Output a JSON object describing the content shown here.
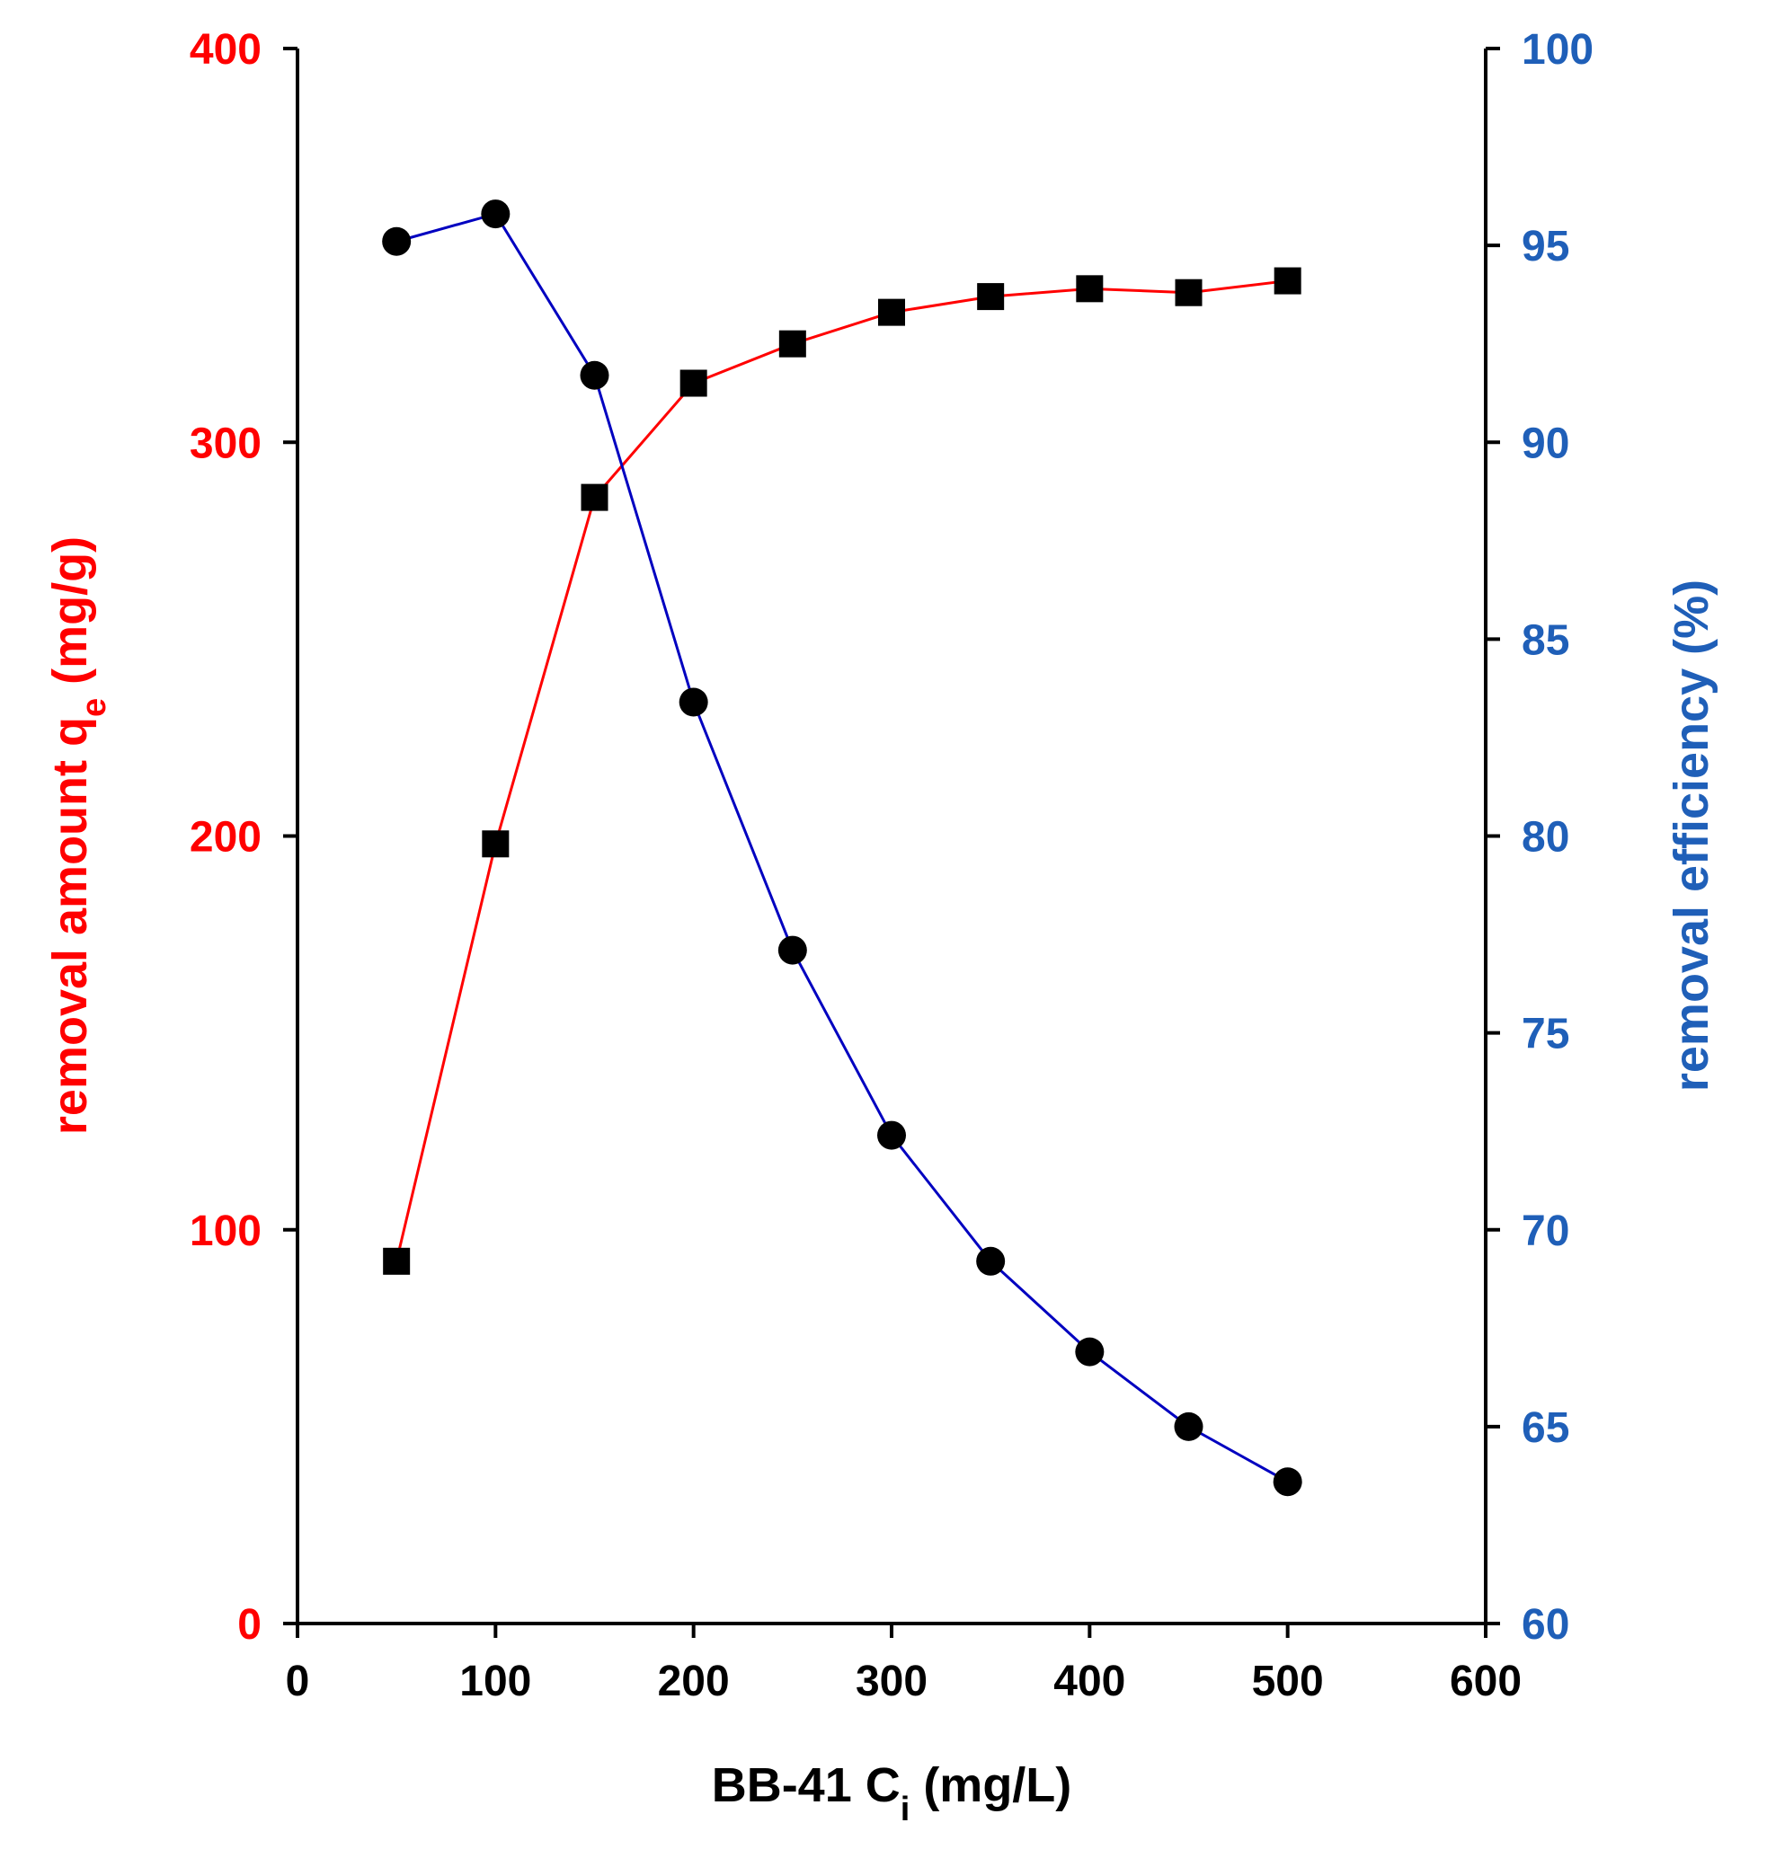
{
  "chart_data": {
    "type": "line",
    "title": "",
    "xlabel": {
      "main": "BB-41 C",
      "sub": "i",
      "suffix": " (mg/L)"
    },
    "ylabel": {
      "main": "removal amount q",
      "sub": "e",
      "suffix": " (mg/g)"
    },
    "y2label": "removal efficiency (%)",
    "xlim": [
      0,
      600
    ],
    "ylim": [
      0,
      400
    ],
    "y2lim": [
      60,
      100
    ],
    "xticks": [
      0,
      100,
      200,
      300,
      400,
      500,
      600
    ],
    "yticks": [
      0,
      100,
      200,
      300,
      400
    ],
    "y2ticks": [
      60,
      65,
      70,
      75,
      80,
      85,
      90,
      95,
      100
    ],
    "grid": false,
    "colors": {
      "left_axis": "#ff0000",
      "right_axis": "#1f5fb8",
      "qe_line": "#ff0000",
      "eff_line": "#0000c0",
      "markers": "#000000",
      "axes": "#000000"
    },
    "series": [
      {
        "name": "removal amount qe",
        "axis": "left",
        "marker": "square",
        "x": [
          50,
          100,
          150,
          200,
          250,
          300,
          350,
          400,
          450,
          500
        ],
        "values": [
          92,
          198,
          286,
          315,
          325,
          333,
          337,
          339,
          338,
          341
        ]
      },
      {
        "name": "removal efficiency",
        "axis": "right",
        "marker": "circle",
        "x": [
          50,
          100,
          150,
          200,
          250,
          300,
          350,
          400,
          450,
          500
        ],
        "values": [
          95.1,
          95.8,
          91.7,
          83.4,
          77.1,
          72.4,
          69.2,
          66.9,
          65.0,
          63.6
        ]
      }
    ]
  }
}
